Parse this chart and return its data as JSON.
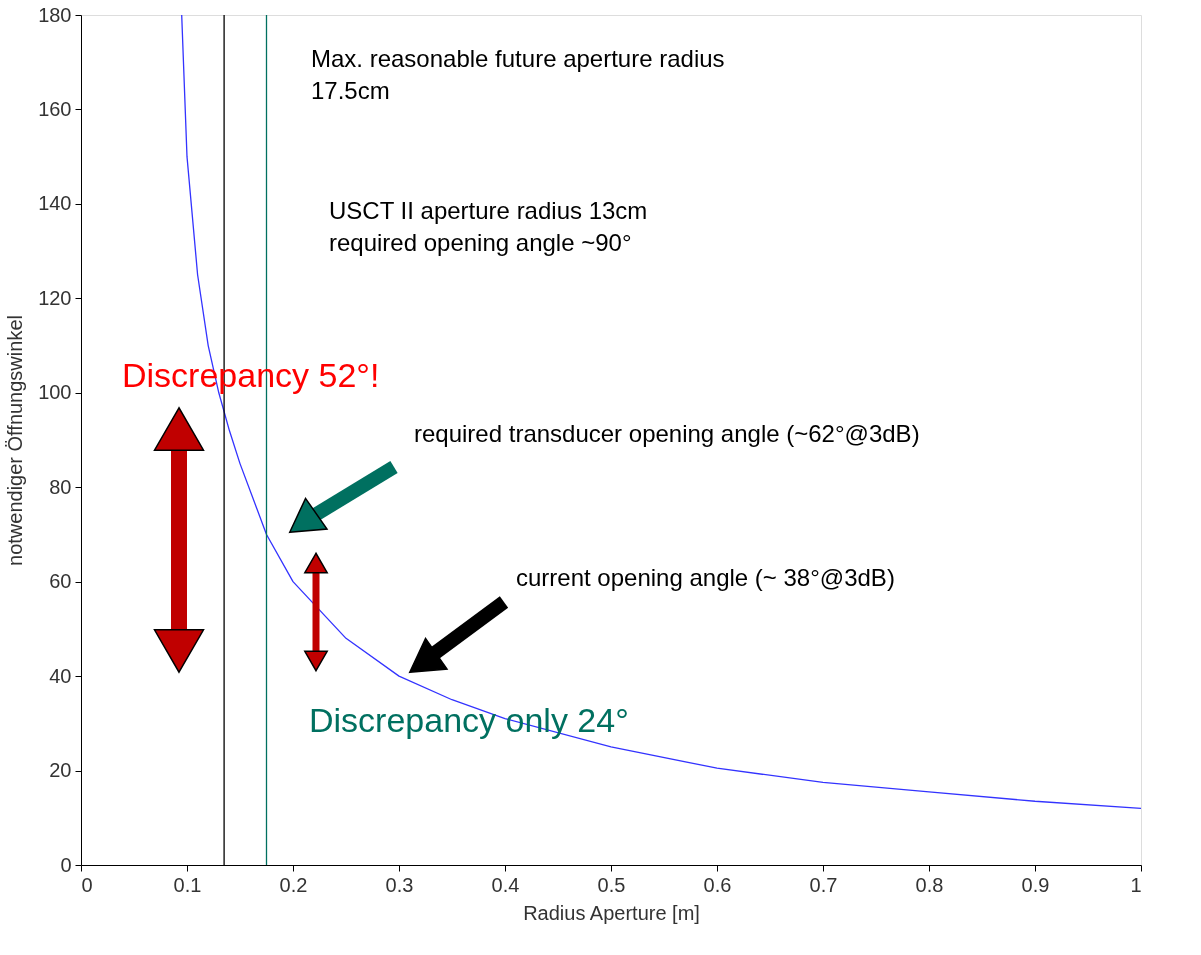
{
  "chart_data": {
    "type": "line",
    "xlabel": "Radius Aperture [m]",
    "ylabel": "notwendiger Öffnungswinkel",
    "xlim": [
      0,
      1
    ],
    "ylim": [
      0,
      180
    ],
    "xticks": [
      0,
      0.1,
      0.2,
      0.3,
      0.4,
      0.5,
      0.6,
      0.7,
      0.8,
      0.9,
      1
    ],
    "yticks": [
      0,
      20,
      40,
      60,
      80,
      100,
      120,
      140,
      160,
      180
    ],
    "grid": false,
    "marker": "none",
    "line_style": "solid",
    "series": [
      {
        "color": "#3333ff",
        "x": [
          0.095,
          0.1,
          0.11,
          0.12,
          0.13,
          0.14,
          0.15,
          0.175,
          0.2,
          0.25,
          0.3,
          0.35,
          0.4,
          0.5,
          0.6,
          0.7,
          0.8,
          0.9,
          1.0
        ],
        "values": [
          180,
          150,
          125,
          110,
          100,
          92,
          85,
          70,
          60,
          48,
          40,
          35,
          31,
          25,
          20.5,
          17.5,
          15.5,
          13.5,
          12
        ]
      }
    ],
    "ref_lines": [
      {
        "axis": "x",
        "value": 0.135,
        "label": null,
        "color": "#000000"
      },
      {
        "axis": "x",
        "value": 0.175,
        "label": null,
        "color": "#007060"
      }
    ],
    "annotations": [
      "Max. reasonable future  aperture radius\n17.5cm",
      "USCT II aperture radius 13cm\nrequired opening angle ~90°",
      "Discrepancy 52°!",
      "required transducer opening angle (~62°@3dB)",
      "current opening angle (~ 38°@3dB)",
      "Discrepancy only  24°"
    ]
  }
}
